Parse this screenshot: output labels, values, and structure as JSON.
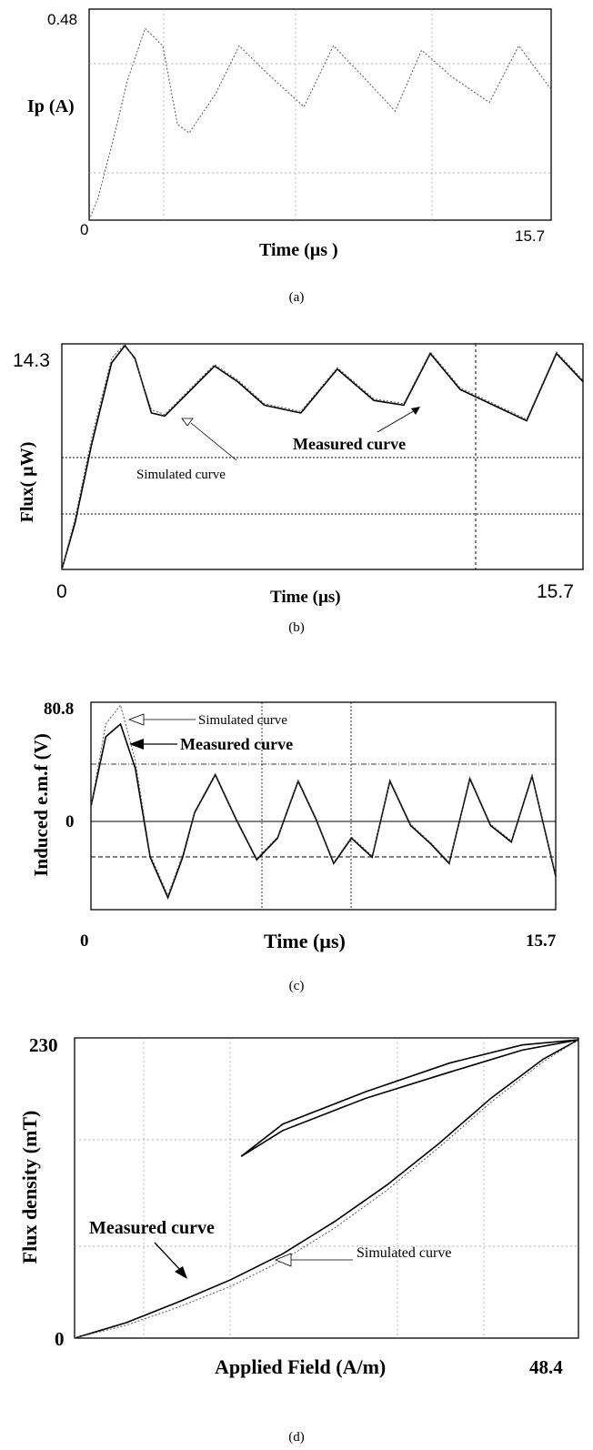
{
  "chart_data": [
    {
      "panel": "(a)",
      "type": "line",
      "ylabel": "Ip (A)",
      "xlabel": "Time (µs )",
      "x_tick_labels": [
        "0",
        "15.7"
      ],
      "y_tick_labels": [
        "0.48"
      ],
      "xlim": [
        0,
        15.7
      ],
      "ylim": [
        0,
        0.48
      ],
      "grid": true,
      "series": [
        {
          "style": "dotted",
          "x": [
            0,
            0.3,
            0.8,
            1.3,
            1.9,
            2.5,
            3.0,
            3.4,
            4.3,
            5.1,
            6.0,
            7.3,
            8.3,
            9.3,
            10.4,
            11.3,
            12.3,
            13.6,
            14.6,
            15.7
          ],
          "y": [
            0,
            0.05,
            0.18,
            0.32,
            0.44,
            0.4,
            0.22,
            0.2,
            0.29,
            0.4,
            0.34,
            0.26,
            0.4,
            0.33,
            0.25,
            0.39,
            0.33,
            0.27,
            0.4,
            0.3
          ]
        }
      ]
    },
    {
      "panel": "(b)",
      "type": "line",
      "ylabel": "Flux( µW)",
      "xlabel": "Time (µs)",
      "x_tick_labels": [
        "0",
        "15.7"
      ],
      "y_tick_labels": [
        "14.3"
      ],
      "xlim": [
        0,
        15.7
      ],
      "ylim": [
        0,
        14.3
      ],
      "grid": true,
      "annotations": [
        "Measured curve",
        "Simulated curve"
      ],
      "series": [
        {
          "label_ref": "Measured curve",
          "style": "solid",
          "x": [
            0,
            0.4,
            0.9,
            1.5,
            1.9,
            2.2,
            2.7,
            3.1,
            3.9,
            4.6,
            5.3,
            6.1,
            7.2,
            8.3,
            9.4,
            10.3,
            11.1,
            12.0,
            13.0,
            14.0,
            14.9,
            15.7
          ],
          "y": [
            0,
            3.0,
            8.0,
            13.2,
            14.3,
            13.5,
            10.0,
            9.8,
            11.5,
            13.0,
            12.0,
            10.5,
            10.0,
            12.8,
            10.8,
            10.5,
            13.8,
            11.5,
            10.5,
            9.5,
            13.8,
            12.0
          ]
        },
        {
          "label_ref": "Simulated curve",
          "style": "dotted",
          "x": [
            0,
            0.4,
            0.9,
            1.5,
            1.9,
            2.2,
            2.7,
            3.1,
            3.9,
            4.6,
            5.3,
            6.1,
            7.2,
            8.3,
            9.4,
            10.3,
            11.1,
            12.0,
            13.0,
            14.0,
            14.9,
            15.7
          ],
          "y": [
            0,
            3.3,
            8.4,
            13.5,
            14.4,
            13.4,
            10.2,
            9.9,
            11.6,
            13.1,
            12.1,
            10.6,
            10.1,
            12.9,
            10.9,
            10.6,
            13.9,
            11.6,
            10.6,
            9.6,
            13.9,
            12.1
          ]
        }
      ]
    },
    {
      "panel": "(c)",
      "type": "line",
      "ylabel": "Induced e.m.f (V)",
      "xlabel": "Time (µs)",
      "x_tick_labels": [
        "0",
        "15.7"
      ],
      "y_tick_labels": [
        "80.8",
        "0"
      ],
      "xlim": [
        0,
        15.7
      ],
      "ylim": [
        -80,
        80.8
      ],
      "grid": true,
      "annotations": [
        "Simulated curve",
        "Measured curve"
      ],
      "series": [
        {
          "label_ref": "Measured curve",
          "style": "solid",
          "x": [
            0,
            0.5,
            1.0,
            1.5,
            2.0,
            2.6,
            3.1,
            3.5,
            4.2,
            4.9,
            5.6,
            6.3,
            7.0,
            7.6,
            8.2,
            8.8,
            9.5,
            10.1,
            10.8,
            11.5,
            12.1,
            12.8,
            13.5,
            14.2,
            14.9,
            15.7
          ],
          "y": [
            0,
            55,
            65,
            30,
            -40,
            -72,
            -40,
            -5,
            25,
            -10,
            -42,
            -25,
            20,
            -10,
            -45,
            -25,
            -40,
            20,
            -15,
            -30,
            -45,
            22,
            -15,
            -28,
            24,
            -55
          ]
        },
        {
          "label_ref": "Simulated curve",
          "style": "dotted",
          "x": [
            0,
            0.5,
            1.0,
            1.5,
            2.0,
            2.6,
            3.1,
            3.5,
            4.2,
            4.9,
            5.6,
            6.3,
            7.0,
            7.6,
            8.2,
            8.8,
            9.5,
            10.1,
            10.8,
            11.5,
            12.1,
            12.8,
            13.5,
            14.2,
            14.9,
            15.7
          ],
          "y": [
            0,
            65,
            80,
            36,
            -38,
            -70,
            -38,
            -4,
            26,
            -9,
            -41,
            -24,
            21,
            -9,
            -44,
            -24,
            -39,
            21,
            -14,
            -29,
            -44,
            23,
            -14,
            -27,
            25,
            -54
          ]
        }
      ]
    },
    {
      "panel": "(d)",
      "type": "line",
      "ylabel": "Flux density (mT)",
      "xlabel": "Applied Field (A/m)",
      "x_tick_labels": [
        "48.4"
      ],
      "y_tick_labels": [
        "230",
        "0"
      ],
      "xlim": [
        0,
        48.4
      ],
      "ylim": [
        0,
        230
      ],
      "grid": true,
      "annotations": [
        "Measured curve",
        "Simulated curve"
      ],
      "series": [
        {
          "label_ref": "Measured curve",
          "style": "solid",
          "x": [
            0,
            5,
            10,
            15,
            20,
            25,
            30,
            35,
            40,
            45,
            48.4,
            43,
            36,
            28,
            20,
            16,
            20,
            28,
            36,
            43,
            48.4
          ],
          "y": [
            0,
            12,
            28,
            45,
            65,
            90,
            118,
            150,
            185,
            215,
            230,
            222,
            205,
            185,
            160,
            140,
            165,
            190,
            212,
            226,
            230
          ]
        },
        {
          "label_ref": "Simulated curve",
          "style": "dotted",
          "x": [
            0,
            5,
            10,
            15,
            20,
            25,
            30,
            35,
            40,
            45,
            48.4
          ],
          "y": [
            0,
            10,
            24,
            40,
            60,
            85,
            114,
            147,
            182,
            213,
            230
          ]
        }
      ]
    }
  ],
  "captions": [
    "(a)",
    "(b)",
    "(c)",
    "(d)"
  ]
}
